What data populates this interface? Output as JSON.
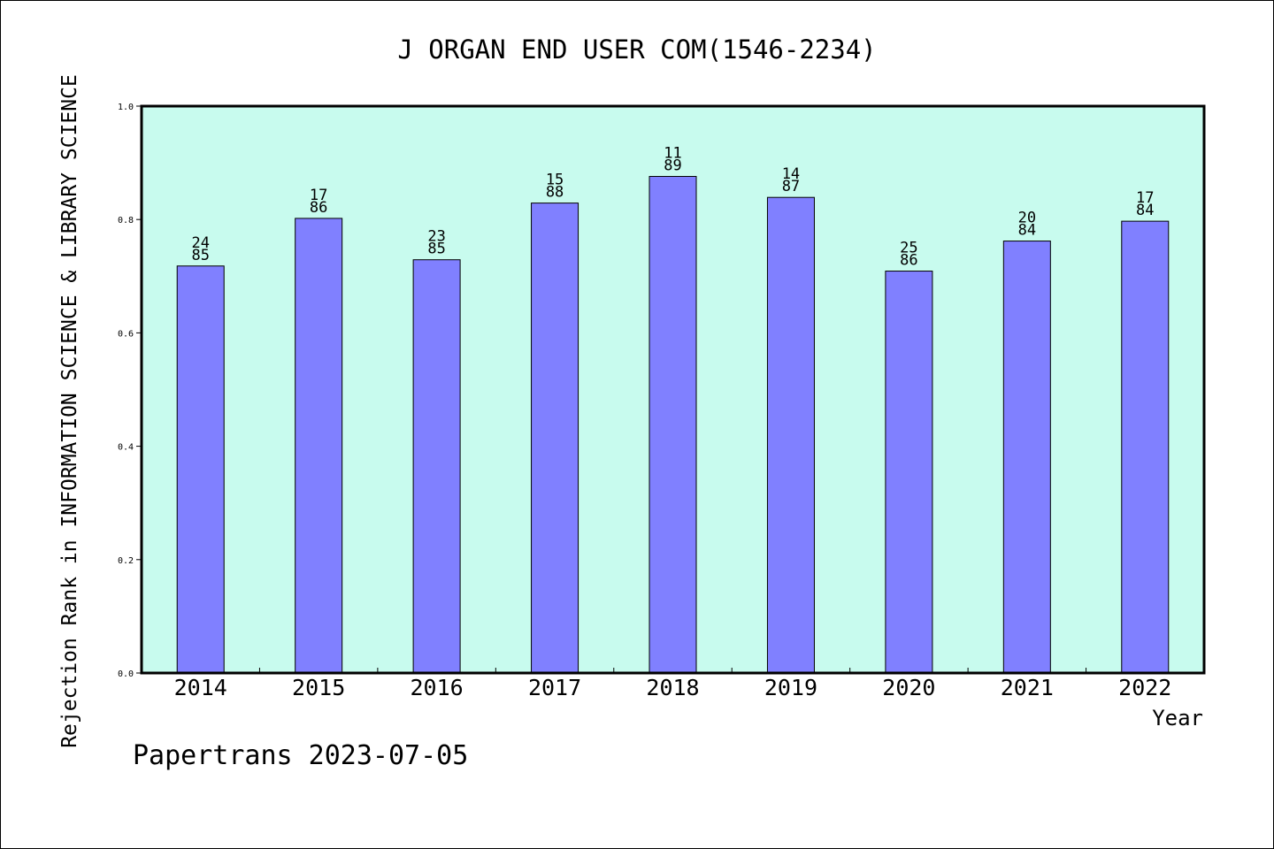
{
  "chart_data": {
    "type": "bar",
    "title": "J ORGAN END USER COM(1546-2234)",
    "xlabel": "Year",
    "ylabel": "Rejection Rank in INFORMATION SCIENCE & LIBRARY SCIENCE",
    "ylim": [
      0.0,
      1.0
    ],
    "yticks": [
      "0.0",
      "0.2",
      "0.4",
      "0.6",
      "0.8",
      "1.0"
    ],
    "categories": [
      "2014",
      "2015",
      "2016",
      "2017",
      "2018",
      "2019",
      "2020",
      "2021",
      "2022"
    ],
    "values": [
      0.718,
      0.802,
      0.729,
      0.829,
      0.876,
      0.839,
      0.709,
      0.762,
      0.797
    ],
    "labels_top": [
      "24",
      "17",
      "23",
      "15",
      "11",
      "14",
      "25",
      "20",
      "17"
    ],
    "labels_bottom": [
      "85",
      "86",
      "85",
      "88",
      "89",
      "87",
      "86",
      "84",
      "84"
    ],
    "grid": false,
    "plot_background": "#c8fbee",
    "bar_color": "#8080ff"
  },
  "footer": "Papertrans 2023-07-05"
}
